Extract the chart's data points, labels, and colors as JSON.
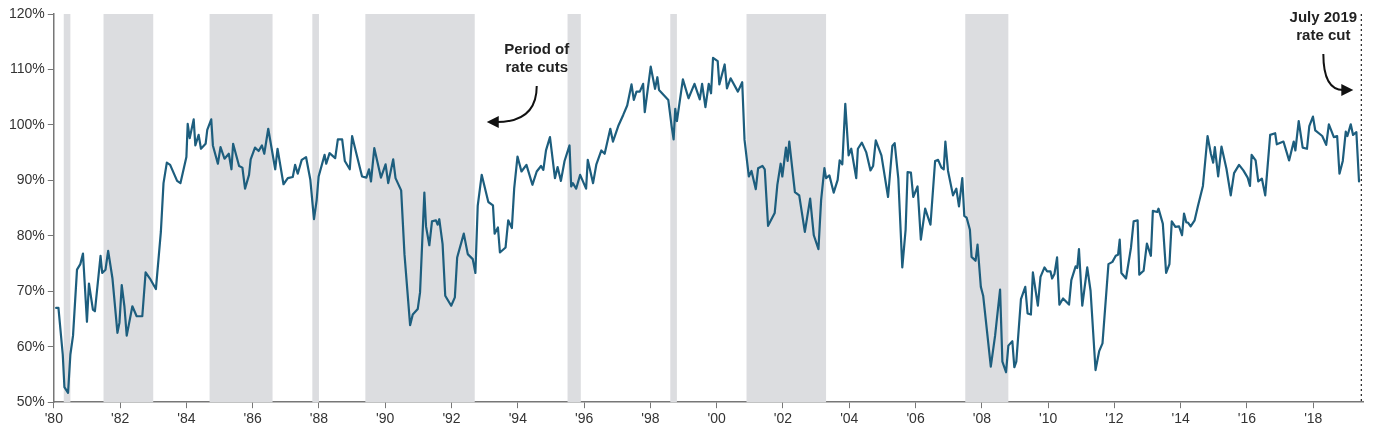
{
  "chart_data": {
    "type": "line",
    "xlim": [
      1980,
      2019.5
    ],
    "xticks": [
      {
        "value": 1980,
        "label": "'80"
      },
      {
        "value": 1982,
        "label": "'82"
      },
      {
        "value": 1984,
        "label": "'84"
      },
      {
        "value": 1986,
        "label": "'86"
      },
      {
        "value": 1988,
        "label": "'88"
      },
      {
        "value": 1990,
        "label": "'90"
      },
      {
        "value": 1992,
        "label": "'92"
      },
      {
        "value": 1994,
        "label": "'94"
      },
      {
        "value": 1996,
        "label": "'96"
      },
      {
        "value": 1998,
        "label": "'98"
      },
      {
        "value": 2000,
        "label": "'00"
      },
      {
        "value": 2002,
        "label": "'02"
      },
      {
        "value": 2004,
        "label": "'04"
      },
      {
        "value": 2006,
        "label": "'06"
      },
      {
        "value": 2008,
        "label": "'08"
      },
      {
        "value": 2010,
        "label": "'10"
      },
      {
        "value": 2012,
        "label": "'12"
      },
      {
        "value": 2014,
        "label": "'14"
      },
      {
        "value": 2016,
        "label": "'16"
      },
      {
        "value": 2018,
        "label": "'18"
      }
    ],
    "ylim": [
      50,
      120
    ],
    "yticks": [
      {
        "value": 50,
        "label": "50%"
      },
      {
        "value": 60,
        "label": "60%"
      },
      {
        "value": 70,
        "label": "70%"
      },
      {
        "value": 80,
        "label": "80%"
      },
      {
        "value": 90,
        "label": "90%"
      },
      {
        "value": 100,
        "label": "100%"
      },
      {
        "value": 110,
        "label": "110%"
      },
      {
        "value": 120,
        "label": "120%"
      }
    ],
    "grid": false,
    "legend": false,
    "marker": "none",
    "line_style": "solid",
    "series": [
      {
        "color": "#1d5e7e",
        "x": [
          1980.07,
          1980.14,
          1980.27,
          1980.32,
          1980.43,
          1980.5,
          1980.58,
          1980.7,
          1980.8,
          1980.88,
          1981.0,
          1981.06,
          1981.18,
          1981.24,
          1981.41,
          1981.46,
          1981.56,
          1981.64,
          1981.77,
          1981.92,
          1981.98,
          1982.05,
          1982.13,
          1982.2,
          1982.37,
          1982.5,
          1982.67,
          1982.77,
          1982.9,
          1983.08,
          1983.23,
          1983.31,
          1983.41,
          1983.51,
          1983.72,
          1983.82,
          1984.0,
          1984.04,
          1984.1,
          1984.22,
          1984.27,
          1984.37,
          1984.44,
          1984.58,
          1984.63,
          1984.75,
          1984.8,
          1984.95,
          1985.03,
          1985.15,
          1985.28,
          1985.36,
          1985.41,
          1985.59,
          1985.69,
          1985.77,
          1985.89,
          1985.94,
          1986.07,
          1986.18,
          1986.28,
          1986.35,
          1986.47,
          1986.68,
          1986.75,
          1986.93,
          1987.06,
          1987.21,
          1987.28,
          1987.36,
          1987.48,
          1987.61,
          1987.74,
          1987.85,
          1987.93,
          1987.99,
          1988.17,
          1988.22,
          1988.32,
          1988.49,
          1988.57,
          1988.7,
          1988.78,
          1988.93,
          1989.0,
          1989.13,
          1989.3,
          1989.43,
          1989.51,
          1989.57,
          1989.67,
          1989.87,
          1990.01,
          1990.09,
          1990.24,
          1990.31,
          1990.48,
          1990.58,
          1990.75,
          1990.83,
          1990.98,
          1991.05,
          1991.18,
          1991.23,
          1991.33,
          1991.41,
          1991.53,
          1991.58,
          1991.63,
          1991.73,
          1991.81,
          1991.99,
          1992.1,
          1992.17,
          1992.37,
          1992.49,
          1992.64,
          1992.72,
          1992.79,
          1992.91,
          1993.11,
          1993.25,
          1993.3,
          1993.4,
          1993.46,
          1993.63,
          1993.71,
          1993.82,
          1993.89,
          1993.99,
          1994.11,
          1994.26,
          1994.44,
          1994.57,
          1994.7,
          1994.77,
          1994.85,
          1994.97,
          1995.12,
          1995.2,
          1995.3,
          1995.41,
          1995.56,
          1995.61,
          1995.66,
          1995.76,
          1995.88,
          1996.06,
          1996.11,
          1996.27,
          1996.37,
          1996.52,
          1996.62,
          1996.79,
          1996.87,
          1997.03,
          1997.18,
          1997.3,
          1997.43,
          1997.5,
          1997.58,
          1997.68,
          1997.78,
          1997.83,
          1998.01,
          1998.14,
          1998.21,
          1998.26,
          1998.54,
          1998.64,
          1998.7,
          1998.75,
          1998.8,
          1998.98,
          1999.15,
          1999.33,
          1999.49,
          1999.56,
          1999.66,
          1999.76,
          1999.83,
          1999.89,
          2000.03,
          2000.08,
          2000.24,
          2000.31,
          2000.42,
          2000.64,
          2000.77,
          2000.84,
          2000.97,
          2001.05,
          2001.18,
          2001.25,
          2001.38,
          2001.45,
          2001.55,
          2001.75,
          2001.83,
          2001.93,
          2001.98,
          2002.09,
          2002.14,
          2002.19,
          2002.36,
          2002.49,
          2002.66,
          2002.82,
          2002.93,
          2003.07,
          2003.15,
          2003.25,
          2003.3,
          2003.4,
          2003.53,
          2003.65,
          2003.71,
          2003.79,
          2003.88,
          2003.98,
          2004.06,
          2004.21,
          2004.26,
          2004.38,
          2004.51,
          2004.64,
          2004.72,
          2004.8,
          2004.97,
          2005.17,
          2005.3,
          2005.37,
          2005.48,
          2005.6,
          2005.7,
          2005.76,
          2005.86,
          2005.93,
          2006.06,
          2006.16,
          2006.29,
          2006.45,
          2006.59,
          2006.68,
          2006.78,
          2006.85,
          2006.9,
          2006.98,
          2007.13,
          2007.23,
          2007.31,
          2007.41,
          2007.47,
          2007.54,
          2007.64,
          2007.69,
          2007.81,
          2007.87,
          2007.97,
          2008.04,
          2008.17,
          2008.27,
          2008.4,
          2008.55,
          2008.62,
          2008.73,
          2008.8,
          2008.92,
          2008.98,
          2009.04,
          2009.18,
          2009.31,
          2009.38,
          2009.48,
          2009.54,
          2009.69,
          2009.77,
          2009.89,
          2009.97,
          2010.07,
          2010.12,
          2010.19,
          2010.27,
          2010.34,
          2010.45,
          2010.63,
          2010.7,
          2010.83,
          2010.88,
          2010.93,
          2011.03,
          2011.18,
          2011.28,
          2011.43,
          2011.54,
          2011.64,
          2011.82,
          2011.94,
          2012.04,
          2012.11,
          2012.16,
          2012.21,
          2012.35,
          2012.5,
          2012.58,
          2012.7,
          2012.75,
          2012.88,
          2012.98,
          2013.1,
          2013.16,
          2013.29,
          2013.33,
          2013.46,
          2013.56,
          2013.66,
          2013.73,
          2013.84,
          2013.95,
          2014.04,
          2014.1,
          2014.17,
          2014.22,
          2014.3,
          2014.42,
          2014.52,
          2014.67,
          2014.81,
          2014.91,
          2014.98,
          2015.03,
          2015.13,
          2015.23,
          2015.38,
          2015.51,
          2015.61,
          2015.76,
          2015.89,
          2016.02,
          2016.09,
          2016.14,
          2016.26,
          2016.34,
          2016.45,
          2016.55,
          2016.7,
          2016.85,
          2016.9,
          2017.1,
          2017.27,
          2017.41,
          2017.46,
          2017.56,
          2017.68,
          2017.81,
          2017.88,
          2017.99,
          2018.06,
          2018.27,
          2018.39,
          2018.47,
          2018.62,
          2018.72,
          2018.79,
          2018.89,
          2018.98,
          2019.03,
          2019.13,
          2019.2,
          2019.3,
          2019.38
        ],
        "values": [
          67.0,
          67.0,
          58.6,
          52.7,
          51.7,
          58.6,
          62.0,
          73.9,
          74.9,
          76.8,
          64.5,
          71.4,
          66.7,
          66.4,
          76.4,
          73.3,
          73.9,
          77.3,
          72.3,
          62.5,
          64.3,
          71.1,
          67.3,
          62.0,
          67.3,
          65.5,
          65.5,
          73.4,
          72.3,
          70.4,
          80.7,
          89.5,
          93.2,
          92.8,
          89.9,
          89.5,
          94.2,
          100.2,
          97.6,
          101.0,
          96.3,
          98.2,
          95.7,
          96.6,
          99.1,
          101.0,
          96.3,
          93.0,
          96.0,
          93.9,
          94.8,
          92.0,
          96.6,
          92.6,
          92.3,
          88.5,
          91.0,
          93.8,
          95.9,
          95.3,
          96.3,
          94.8,
          99.3,
          92.0,
          95.7,
          89.3,
          90.4,
          90.6,
          92.8,
          91.2,
          93.7,
          94.2,
          90.1,
          83.0,
          86.4,
          90.7,
          94.6,
          93.0,
          94.9,
          94.0,
          97.4,
          97.4,
          93.5,
          92.0,
          98.0,
          94.8,
          90.7,
          90.5,
          92.0,
          89.8,
          95.8,
          90.5,
          92.9,
          89.5,
          93.8,
          90.4,
          88.2,
          76.7,
          63.9,
          65.8,
          66.8,
          69.8,
          87.8,
          81.7,
          78.3,
          82.6,
          82.8,
          82.0,
          83.0,
          78.5,
          69.2,
          67.4,
          68.9,
          76.1,
          80.4,
          76.7,
          75.8,
          73.3,
          85.4,
          91.0,
          86.1,
          85.5,
          80.4,
          81.5,
          77.0,
          77.9,
          82.8,
          81.4,
          88.5,
          94.3,
          91.6,
          92.8,
          89.2,
          91.6,
          92.6,
          91.9,
          95.4,
          97.8,
          90.4,
          92.4,
          89.9,
          93.5,
          96.3,
          88.9,
          89.5,
          88.5,
          91.0,
          88.5,
          93.7,
          89.5,
          92.9,
          95.4,
          94.8,
          99.3,
          97.0,
          99.8,
          101.8,
          103.5,
          107.3,
          104.5,
          106.0,
          106.0,
          107.4,
          102.3,
          110.5,
          106.5,
          108.6,
          106.3,
          104.5,
          99.8,
          97.4,
          102.9,
          100.7,
          108.2,
          104.8,
          107.4,
          104.6,
          107.4,
          103.2,
          107.4,
          105.7,
          112.1,
          111.5,
          107.3,
          110.9,
          106.6,
          108.4,
          106.0,
          107.7,
          97.3,
          90.7,
          91.7,
          88.4,
          92.2,
          92.6,
          92.0,
          81.8,
          84.1,
          89.2,
          93.0,
          90.7,
          95.9,
          93.5,
          97.0,
          87.9,
          87.3,
          80.7,
          86.7,
          80.1,
          77.6,
          86.4,
          92.2,
          90.4,
          90.9,
          87.8,
          90.1,
          93.6,
          92.9,
          103.8,
          94.5,
          95.7,
          90.4,
          95.7,
          96.8,
          95.1,
          91.8,
          92.6,
          97.2,
          94.5,
          87.0,
          96.2,
          96.7,
          90.3,
          74.3,
          81.1,
          91.5,
          91.4,
          87.0,
          88.9,
          79.3,
          84.9,
          82.0,
          93.5,
          93.7,
          92.3,
          92.0,
          97.0,
          91.7,
          87.3,
          88.5,
          85.3,
          90.4,
          83.6,
          83.3,
          81.1,
          76.2,
          75.5,
          78.4,
          70.8,
          69.2,
          62.0,
          56.4,
          62.0,
          70.3,
          57.3,
          55.4,
          60.2,
          61.0,
          56.3,
          57.3,
          68.6,
          70.8,
          66.0,
          65.8,
          73.4,
          67.4,
          72.6,
          74.3,
          73.6,
          73.6,
          72.3,
          73.1,
          76.1,
          67.6,
          68.7,
          67.6,
          72.0,
          74.5,
          74.2,
          77.6,
          67.4,
          74.3,
          70.1,
          55.8,
          59.2,
          60.6,
          74.9,
          75.3,
          76.4,
          76.6,
          79.3,
          73.3,
          72.3,
          77.9,
          82.6,
          82.8,
          73.0,
          73.7,
          78.6,
          76.4,
          84.5,
          84.3,
          84.9,
          82.2,
          73.3,
          74.9,
          82.6,
          81.6,
          81.7,
          80.1,
          84.0,
          82.4,
          82.4,
          81.7,
          82.8,
          85.4,
          89.0,
          98.0,
          94.8,
          93.2,
          96.0,
          90.7,
          96.1,
          92.1,
          87.3,
          91.3,
          92.8,
          91.8,
          90.5,
          89.0,
          94.6,
          93.6,
          89.8,
          90.3,
          87.3,
          98.2,
          98.5,
          96.5,
          97.0,
          93.6,
          97.0,
          95.4,
          100.7,
          95.9,
          95.7,
          99.8,
          101.5,
          99.0,
          98.0,
          96.4,
          100.1,
          97.8,
          98.0,
          91.2,
          93.5,
          98.8,
          98.0,
          100.1,
          98.2,
          98.7,
          89.8
        ]
      }
    ],
    "bands": [
      {
        "axis": "x",
        "from": 1980.3,
        "to": 1980.5,
        "color": "#dcdde0"
      },
      {
        "axis": "x",
        "from": 1981.5,
        "to": 1983.0,
        "color": "#dcdde0"
      },
      {
        "axis": "x",
        "from": 1984.7,
        "to": 1986.6,
        "color": "#dcdde0"
      },
      {
        "axis": "x",
        "from": 1987.8,
        "to": 1988.0,
        "color": "#dcdde0"
      },
      {
        "axis": "x",
        "from": 1989.4,
        "to": 1992.7,
        "color": "#dcdde0",
        "label": "Period of rate cuts"
      },
      {
        "axis": "x",
        "from": 1995.5,
        "to": 1995.9,
        "color": "#dcdde0"
      },
      {
        "axis": "x",
        "from": 1998.6,
        "to": 1998.8,
        "color": "#dcdde0"
      },
      {
        "axis": "x",
        "from": 2000.9,
        "to": 2003.3,
        "color": "#dcdde0"
      },
      {
        "axis": "x",
        "from": 2007.5,
        "to": 2008.8,
        "color": "#dcdde0"
      }
    ],
    "ref_lines": [
      {
        "axis": "x",
        "value": 2019.45,
        "color": "#333333",
        "line_style": "dotted",
        "label": "July 2019 rate cut"
      }
    ]
  }
}
